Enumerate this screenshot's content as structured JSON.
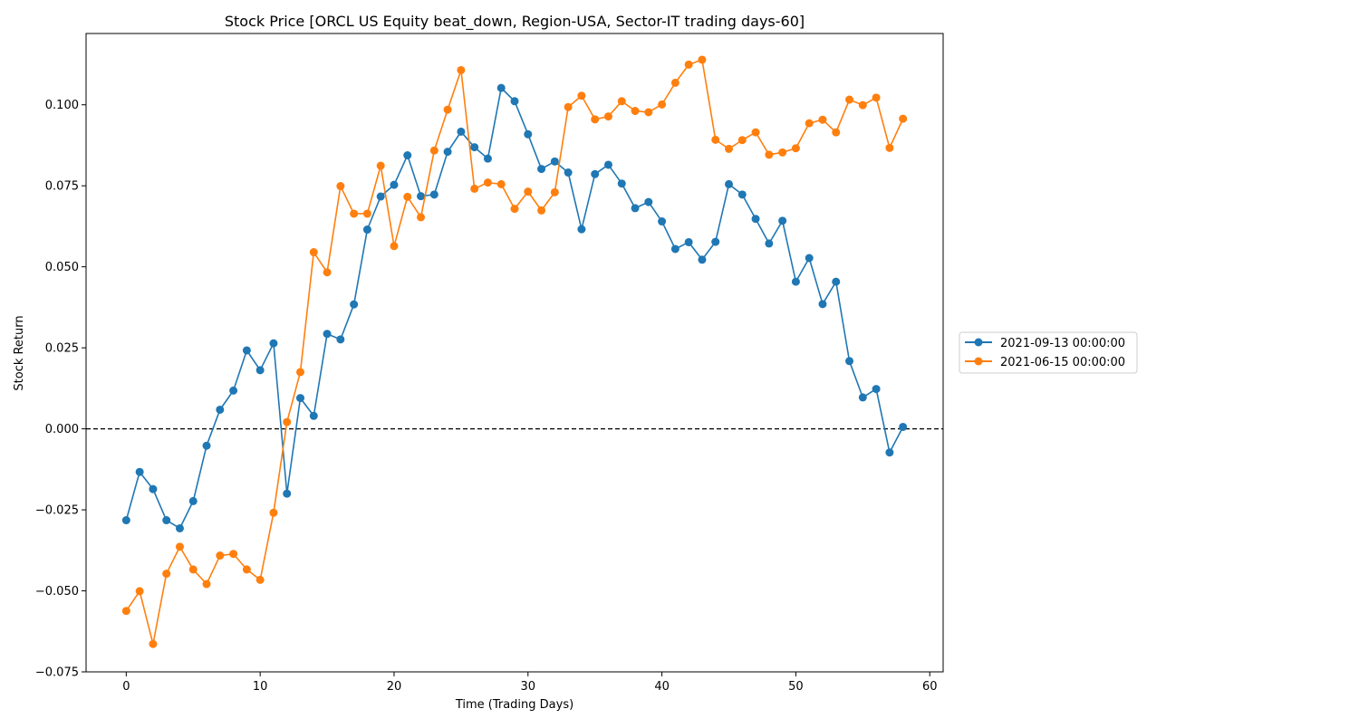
{
  "chart_data": {
    "type": "line",
    "title": "Stock Price [ORCL US Equity beat_down, Region-USA, Sector-IT trading days-60]",
    "xlabel": "Time (Trading Days)",
    "ylabel": "Stock Return",
    "xlim": [
      -3,
      61
    ],
    "ylim": [
      -0.075,
      0.122
    ],
    "xticks": [
      0,
      10,
      20,
      30,
      40,
      50,
      60
    ],
    "xtick_labels": [
      "0",
      "10",
      "20",
      "30",
      "40",
      "50",
      "60"
    ],
    "yticks": [
      -0.075,
      -0.05,
      -0.025,
      0.0,
      0.025,
      0.05,
      0.075,
      0.1
    ],
    "ytick_labels": [
      "−0.075",
      "−0.050",
      "−0.025",
      "0.000",
      "0.025",
      "0.050",
      "0.075",
      "0.100"
    ],
    "grid": false,
    "legend_position": "right",
    "reference_line": {
      "y": 0.0,
      "style": "dashed",
      "color": "#000000"
    },
    "series": [
      {
        "name": "2021-09-13 00:00:00",
        "color": "#1f77b4",
        "x": [
          0,
          1,
          2,
          3,
          4,
          5,
          6,
          7,
          8,
          9,
          10,
          11,
          12,
          13,
          14,
          15,
          16,
          17,
          18,
          19,
          20,
          21,
          22,
          23,
          24,
          25,
          26,
          27,
          28,
          29,
          30,
          31,
          32,
          33,
          34,
          35,
          36,
          37,
          38,
          39,
          40,
          41,
          42,
          43,
          44,
          45,
          46,
          47,
          48,
          49,
          50,
          51,
          52,
          53,
          54,
          55,
          56,
          57,
          58
        ],
        "values": [
          -0.0282,
          -0.0133,
          -0.0186,
          -0.0282,
          -0.0307,
          -0.0223,
          -0.0052,
          0.0059,
          0.0118,
          0.0242,
          0.0181,
          0.0264,
          -0.02,
          0.0095,
          0.004,
          0.0293,
          0.0276,
          0.0384,
          0.0615,
          0.0717,
          0.0753,
          0.0844,
          0.0718,
          0.0723,
          0.0855,
          0.0917,
          0.0869,
          0.0834,
          0.1052,
          0.1011,
          0.0909,
          0.0802,
          0.0825,
          0.0791,
          0.0616,
          0.0786,
          0.0815,
          0.0757,
          0.0681,
          0.07,
          0.064,
          0.0555,
          0.0576,
          0.0522,
          0.0577,
          0.0755,
          0.0723,
          0.0648,
          0.0572,
          0.0642,
          0.0454,
          0.0527,
          0.0385,
          0.0454,
          0.0209,
          0.0097,
          0.0123,
          -0.0073,
          0.0006
        ]
      },
      {
        "name": "2021-06-15 00:00:00",
        "color": "#ff7f0e",
        "x": [
          0,
          1,
          2,
          3,
          4,
          5,
          6,
          7,
          8,
          9,
          10,
          11,
          12,
          13,
          14,
          15,
          16,
          17,
          18,
          19,
          20,
          21,
          22,
          23,
          24,
          25,
          26,
          27,
          28,
          29,
          30,
          31,
          32,
          33,
          34,
          35,
          36,
          37,
          38,
          39,
          40,
          41,
          42,
          43,
          44,
          45,
          46,
          47,
          48,
          49,
          50,
          51,
          52,
          53,
          54,
          55,
          56,
          57,
          58
        ],
        "values": [
          -0.0562,
          -0.0501,
          -0.0664,
          -0.0447,
          -0.0364,
          -0.0434,
          -0.0479,
          -0.0391,
          -0.0386,
          -0.0434,
          -0.0466,
          -0.0259,
          0.0021,
          0.0175,
          0.0545,
          0.0483,
          0.0749,
          0.0664,
          0.0664,
          0.0812,
          0.0564,
          0.0716,
          0.0653,
          0.0859,
          0.0985,
          0.1107,
          0.0741,
          0.076,
          0.0755,
          0.0679,
          0.0732,
          0.0674,
          0.073,
          0.0993,
          0.1028,
          0.0955,
          0.0964,
          0.1011,
          0.0981,
          0.0977,
          0.1001,
          0.1068,
          0.1124,
          0.1139,
          0.0892,
          0.0864,
          0.0891,
          0.0915,
          0.0846,
          0.0853,
          0.0866,
          0.0943,
          0.0954,
          0.0915,
          0.1016,
          0.0999,
          0.1022,
          0.0867,
          0.0957
        ]
      }
    ]
  }
}
